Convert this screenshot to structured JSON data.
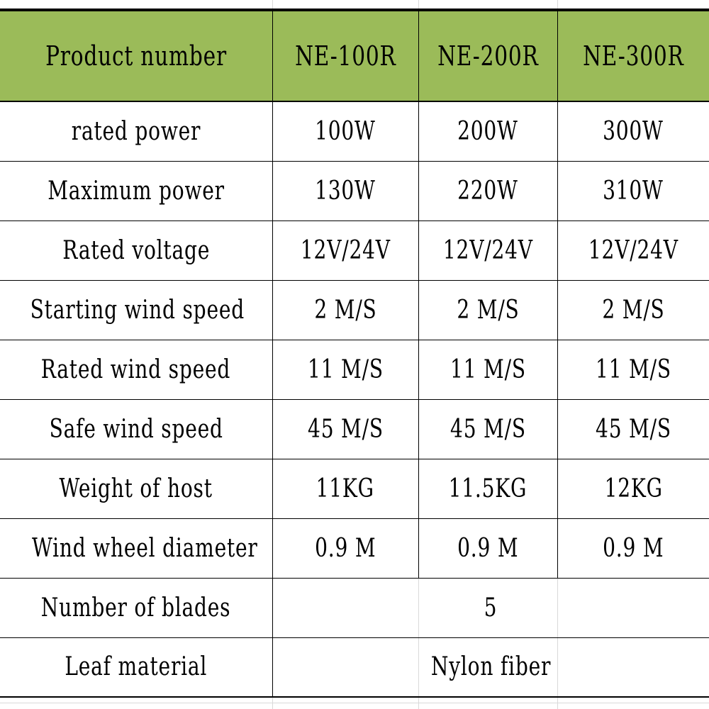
{
  "table": {
    "header": [
      "Product number",
      "NE-100R",
      "NE-200R",
      "NE-300R"
    ],
    "rows": [
      {
        "label": "rated power",
        "values": [
          "100W",
          "200W",
          "300W"
        ]
      },
      {
        "label": "Maximum power",
        "values": [
          "130W",
          "220W",
          "310W"
        ]
      },
      {
        "label": "Rated voltage",
        "values": [
          "12V/24V",
          "12V/24V",
          "12V/24V"
        ]
      },
      {
        "label": "Starting wind speed",
        "values": [
          "2 M/S",
          "2 M/S",
          "2 M/S"
        ]
      },
      {
        "label": "Rated wind speed",
        "values": [
          "11 M/S",
          "11 M/S",
          "11 M/S"
        ]
      },
      {
        "label": "Safe wind speed",
        "values": [
          "45 M/S",
          "45 M/S",
          "45 M/S"
        ]
      },
      {
        "label": "Weight of host",
        "values": [
          "11KG",
          "11.5KG",
          "12KG"
        ]
      },
      {
        "label": "Wind wheel diameter",
        "values": [
          "0.9 M",
          "0.9 M",
          "0.9 M"
        ]
      }
    ],
    "merged_rows": [
      {
        "label": "Number of blades",
        "value": "5"
      },
      {
        "label": "Leaf material",
        "value": "Nylon fiber"
      }
    ]
  },
  "colors": {
    "header_background": "#9bbb59",
    "border": "#000000",
    "text": "#000000"
  }
}
